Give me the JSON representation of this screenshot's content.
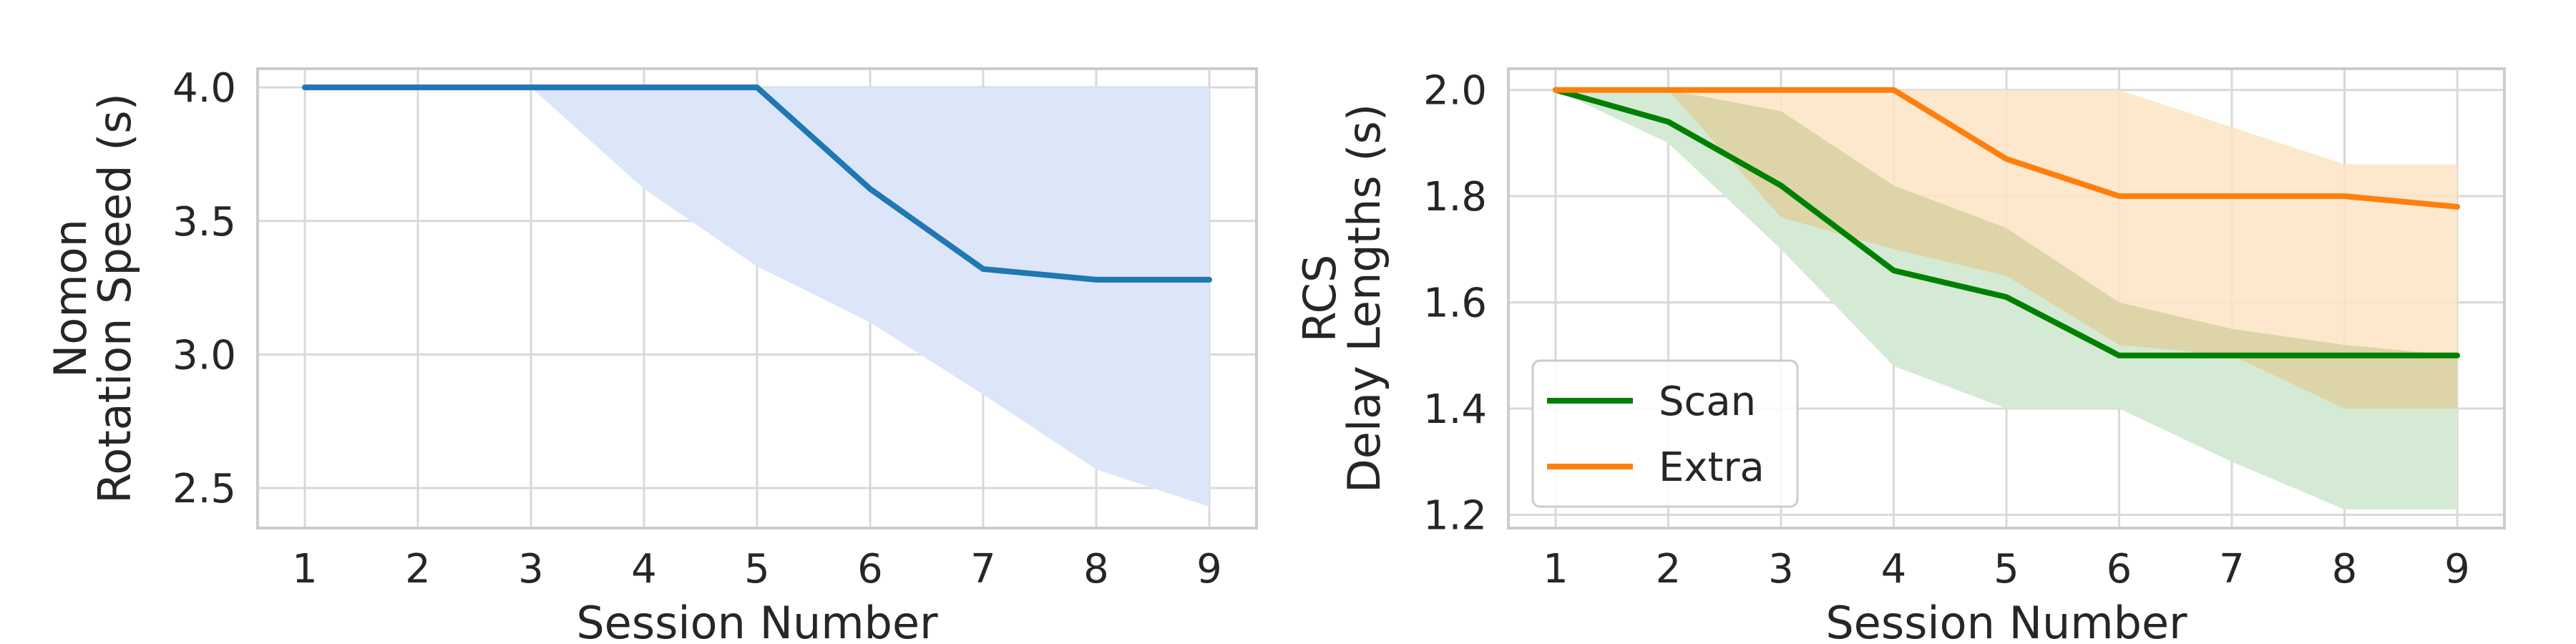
{
  "chart_data": [
    {
      "type": "line",
      "xlabel": "Session Number",
      "ylabel": [
        "Nomon",
        "Rotation Speed (s)"
      ],
      "x": [
        1,
        2,
        3,
        4,
        5,
        6,
        7,
        8,
        9
      ],
      "xticks": [
        "1",
        "2",
        "3",
        "4",
        "5",
        "6",
        "7",
        "8",
        "9"
      ],
      "ylim": [
        2.35,
        4.07
      ],
      "yticks": [
        2.5,
        3.0,
        3.5,
        4.0
      ],
      "ytick_labels": [
        "2.5",
        "3.0",
        "3.5",
        "4.0"
      ],
      "grid": true,
      "series": [
        {
          "values": [
            4.0,
            4.0,
            4.0,
            4.0,
            4.0,
            3.62,
            3.32,
            3.28,
            3.28
          ],
          "band_lower": [
            4.0,
            4.0,
            4.0,
            3.62,
            3.33,
            3.12,
            2.85,
            2.57,
            2.43
          ],
          "band_upper": [
            4.0,
            4.0,
            4.0,
            4.0,
            4.0,
            4.0,
            4.0,
            4.0,
            4.0
          ],
          "color": "#1f77b4",
          "band_color": "#dde6f8"
        }
      ]
    },
    {
      "type": "line",
      "xlabel": "Session Number",
      "ylabel": [
        "RCS",
        "Delay Lengths (s)"
      ],
      "x": [
        1,
        2,
        3,
        4,
        5,
        6,
        7,
        8,
        9
      ],
      "xticks": [
        "1",
        "2",
        "3",
        "4",
        "5",
        "6",
        "7",
        "8",
        "9"
      ],
      "ylim": [
        1.175,
        2.04
      ],
      "yticks": [
        1.2,
        1.4,
        1.6,
        1.8,
        2.0
      ],
      "ytick_labels": [
        "1.2",
        "1.4",
        "1.6",
        "1.8",
        "2.0"
      ],
      "grid": true,
      "legend_position": "bottom-left",
      "series": [
        {
          "name": "Scan",
          "values": [
            2.0,
            1.94,
            1.82,
            1.66,
            1.61,
            1.5,
            1.5,
            1.5,
            1.5
          ],
          "band_lower": [
            2.0,
            1.9,
            1.7,
            1.48,
            1.4,
            1.4,
            1.3,
            1.21,
            1.21
          ],
          "band_upper": [
            2.0,
            2.0,
            1.96,
            1.82,
            1.74,
            1.6,
            1.55,
            1.52,
            1.5
          ],
          "color": "#008000",
          "band_color": "#d4ead4"
        },
        {
          "name": "Extra",
          "values": [
            2.0,
            2.0,
            2.0,
            2.0,
            1.87,
            1.8,
            1.8,
            1.8,
            1.78
          ],
          "band_lower": [
            2.0,
            2.0,
            1.76,
            1.7,
            1.65,
            1.52,
            1.5,
            1.4,
            1.4
          ],
          "band_upper": [
            2.0,
            2.0,
            2.0,
            2.0,
            2.0,
            2.0,
            1.93,
            1.86,
            1.86
          ],
          "color": "#ff7f0e",
          "band_color": "#fde4c6",
          "overlap_color": "#ddd5a8"
        }
      ]
    }
  ]
}
